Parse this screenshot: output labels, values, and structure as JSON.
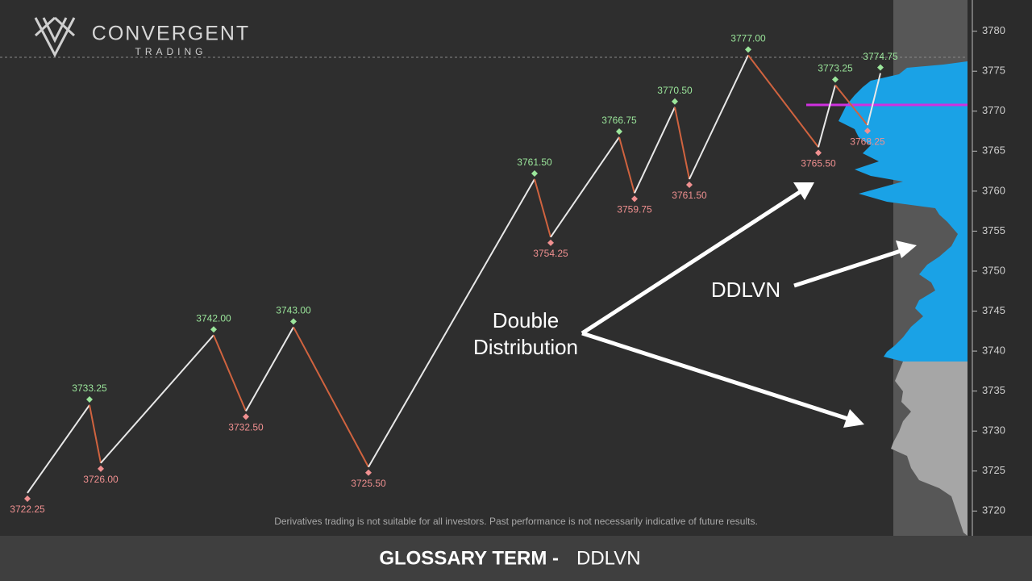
{
  "chart_data": {
    "type": "line",
    "brand": "CONVERGENT",
    "brand_sub": "TRADING",
    "title": "GLOSSARY TERM -",
    "title_term": "DDLVN",
    "note": "Derivatives trading is not suitable for all investors. Past performance is not necessarily indicative of future results.",
    "annotations": [
      "Double",
      "Distribution",
      "DDLVN"
    ],
    "xlim": [
      0,
      1108
    ],
    "ylim": [
      3716.9,
      3783.9
    ],
    "yticks": [
      3720,
      3725,
      3730,
      3735,
      3740,
      3745,
      3750,
      3755,
      3760,
      3765,
      3770,
      3775,
      3780
    ],
    "up_color": "#e8e8e8",
    "down_color": "#d0633f",
    "high_label_color": "#9be69b",
    "low_label_color": "#f09090",
    "series": [
      {
        "name": "Swing",
        "x": [
          34,
          111,
          125,
          265,
          305,
          364,
          457,
          663,
          683,
          768,
          787,
          837,
          855,
          928,
          1015,
          1036,
          1076,
          1092
        ],
        "values": [
          3722.25,
          3733.25,
          3726,
          3742,
          3732.5,
          3743,
          3725.5,
          3761.5,
          3754.25,
          3766.75,
          3759.75,
          3770.5,
          3761.5,
          3777,
          3765.5,
          3773.25,
          3768.25,
          3774.75
        ],
        "value_labels": [
          "3722.25",
          "3733.25",
          "3726.00",
          "3742.00",
          "3732.50",
          "3743.00",
          "3725.50",
          "3761.50",
          "3754.25",
          "3766.75",
          "3759.75",
          "3770.50",
          "3761.50",
          "3777.00",
          "3765.50",
          "3773.25",
          "3768.25",
          "3774.75"
        ]
      }
    ]
  }
}
